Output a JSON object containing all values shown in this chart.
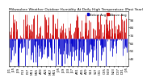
{
  "title": "Milwaukee Weather Outdoor Humidity At Daily High Temperature (Past Year)",
  "background_color": "#ffffff",
  "bar_color_above": "#cc0000",
  "bar_color_below": "#0000cc",
  "legend_label_above": "Above Avg",
  "legend_label_below": "Below Avg",
  "ylim": [
    35,
    105
  ],
  "ytick_values": [
    44,
    54,
    64,
    74,
    84,
    94
  ],
  "n_days": 365,
  "grid_color": "#bbbbbb",
  "title_fontsize": 3.2,
  "legend_fontsize": 2.8,
  "tick_fontsize": 2.8,
  "avg_humidity": 70,
  "noise_std": 18,
  "bar_linewidth": 0.55
}
